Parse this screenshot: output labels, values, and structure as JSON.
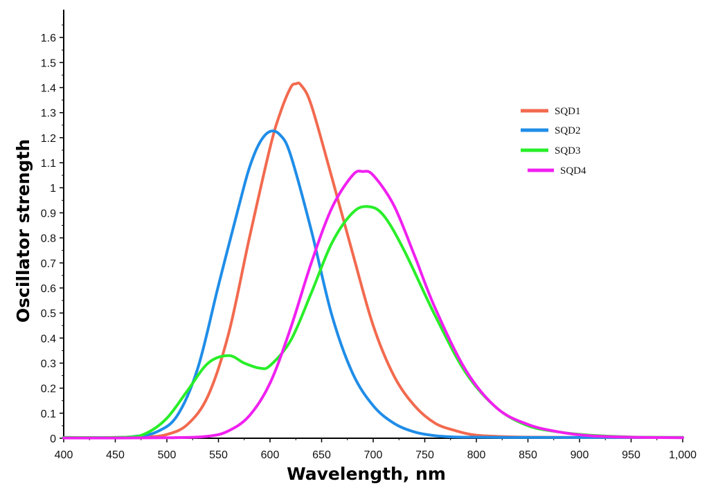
{
  "chart_data": {
    "type": "line",
    "title": "",
    "xlabel": "Wavelength, nm",
    "ylabel": "Oscillator strength",
    "xlim": [
      400,
      1000
    ],
    "ylim": [
      0,
      1.7
    ],
    "grid": false,
    "legend_position": "top-right",
    "x_ticks": [
      400,
      450,
      500,
      550,
      600,
      650,
      700,
      750,
      800,
      850,
      900,
      950,
      1000
    ],
    "x_tick_labels": [
      "400",
      "450",
      "500",
      "550",
      "600",
      "650",
      "700",
      "750",
      "800",
      "850",
      "900",
      "950",
      "1,000"
    ],
    "y_ticks": [
      0,
      0.1,
      0.2,
      0.3,
      0.4,
      0.5,
      0.6,
      0.7,
      0.8,
      0.9,
      1.0,
      1.1,
      1.2,
      1.3,
      1.4,
      1.5,
      1.6
    ],
    "y_tick_labels": [
      "0",
      "0.1",
      "0.2",
      "0.3",
      "0.4",
      "0.5",
      "0.6",
      "0.7",
      "0.8",
      "0.9",
      "1",
      "1.1",
      "1.2",
      "1.3",
      "1.4",
      "1.5",
      "1.6"
    ],
    "series": [
      {
        "name": "SQD1",
        "color": "#f26a4f",
        "x": [
          400,
          450,
          480,
          500,
          520,
          540,
          560,
          580,
          600,
          610,
          620,
          625,
          630,
          640,
          660,
          680,
          700,
          720,
          740,
          760,
          780,
          800,
          830,
          860,
          900,
          950,
          1000
        ],
        "values": [
          0.002,
          0.003,
          0.005,
          0.015,
          0.055,
          0.17,
          0.42,
          0.8,
          1.16,
          1.3,
          1.4,
          1.415,
          1.41,
          1.33,
          1.04,
          0.74,
          0.45,
          0.25,
          0.13,
          0.06,
          0.03,
          0.012,
          0.006,
          0.004,
          0.003,
          0.003,
          0.003
        ]
      },
      {
        "name": "SQD2",
        "color": "#1f8de8",
        "x": [
          400,
          450,
          470,
          490,
          510,
          530,
          550,
          570,
          580,
          590,
          600,
          610,
          620,
          640,
          660,
          680,
          700,
          720,
          740,
          760,
          780,
          800,
          850,
          900,
          950,
          1000
        ],
        "values": [
          0.003,
          0.003,
          0.008,
          0.025,
          0.09,
          0.28,
          0.61,
          0.93,
          1.08,
          1.18,
          1.225,
          1.21,
          1.13,
          0.83,
          0.49,
          0.26,
          0.13,
          0.06,
          0.025,
          0.01,
          0.005,
          0.004,
          0.003,
          0.003,
          0.003,
          0.003
        ]
      },
      {
        "name": "SQD3",
        "color": "#29ee29",
        "x": [
          400,
          460,
          480,
          500,
          520,
          540,
          560,
          575,
          590,
          600,
          620,
          640,
          660,
          680,
          695,
          710,
          730,
          760,
          790,
          820,
          850,
          880,
          910,
          950,
          1000
        ],
        "values": [
          0.003,
          0.004,
          0.02,
          0.08,
          0.19,
          0.3,
          0.33,
          0.3,
          0.28,
          0.29,
          0.39,
          0.58,
          0.78,
          0.9,
          0.925,
          0.89,
          0.75,
          0.49,
          0.26,
          0.12,
          0.05,
          0.025,
          0.012,
          0.005,
          0.003
        ]
      },
      {
        "name": "SQD4",
        "color": "#f020f0",
        "x": [
          400,
          500,
          540,
          560,
          580,
          600,
          620,
          640,
          660,
          680,
          690,
          700,
          720,
          740,
          760,
          790,
          820,
          850,
          880,
          910,
          950,
          1000
        ],
        "values": [
          0.001,
          0.002,
          0.008,
          0.03,
          0.09,
          0.22,
          0.44,
          0.7,
          0.92,
          1.05,
          1.065,
          1.05,
          0.93,
          0.73,
          0.52,
          0.27,
          0.12,
          0.055,
          0.025,
          0.01,
          0.004,
          0.002
        ]
      }
    ]
  }
}
